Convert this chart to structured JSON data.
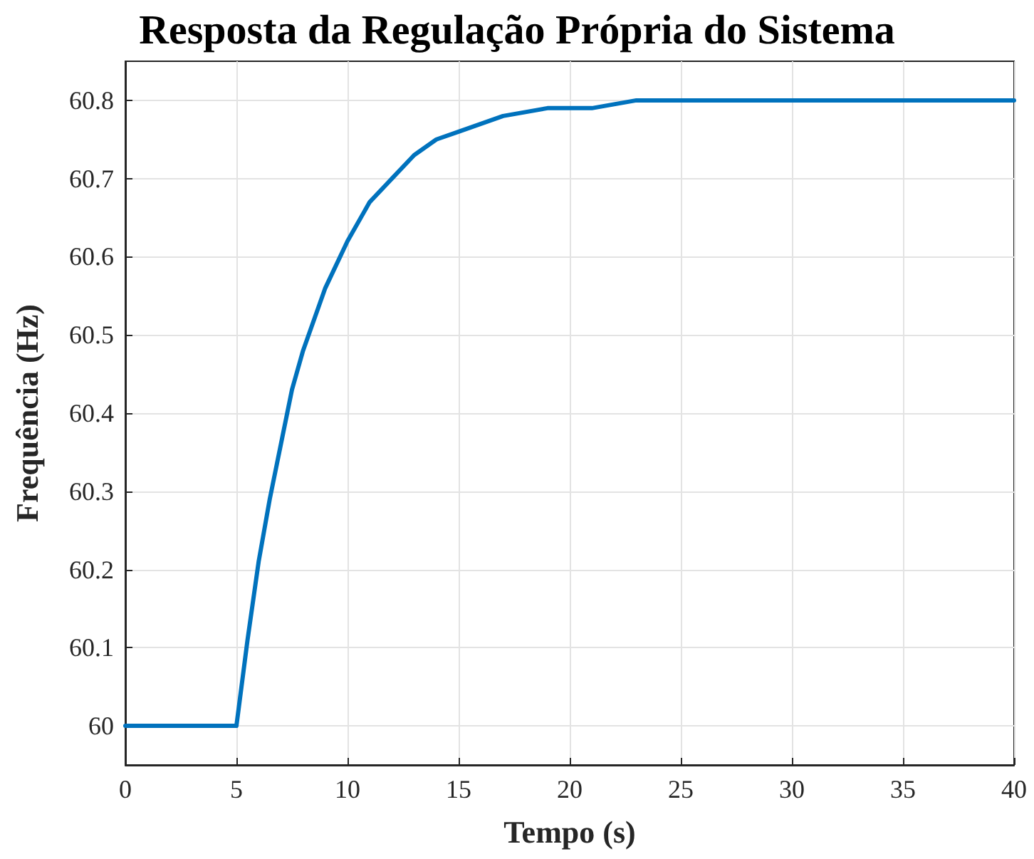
{
  "chart_data": {
    "type": "line",
    "title": "Resposta da Regulação Própria do Sistema",
    "xlabel": "Tempo (s)",
    "ylabel": "Frequência (Hz)",
    "x": [
      0,
      5,
      5.5,
      6,
      6.5,
      7,
      7.5,
      8,
      9,
      10,
      11,
      12,
      13,
      14,
      15,
      17,
      19,
      21,
      23,
      25,
      28,
      31,
      35,
      40
    ],
    "series": [
      {
        "color": "#0072bd",
        "values": [
          60,
          60,
          60.11,
          60.21,
          60.29,
          60.36,
          60.43,
          60.48,
          60.56,
          60.62,
          60.67,
          60.7,
          60.73,
          60.75,
          60.76,
          60.78,
          60.79,
          60.79,
          60.8,
          60.8,
          60.8,
          60.8,
          60.8,
          60.8
        ]
      }
    ],
    "xlim": [
      0,
      40
    ],
    "xticks": [
      0,
      5,
      10,
      15,
      20,
      25,
      30,
      35,
      40
    ],
    "ylim": [
      59.95,
      60.85
    ],
    "yticks": [
      60,
      60.1,
      60.2,
      60.3,
      60.4,
      60.5,
      60.6,
      60.7,
      60.8
    ],
    "grid": true,
    "marker": "none",
    "line_style": "solid"
  }
}
